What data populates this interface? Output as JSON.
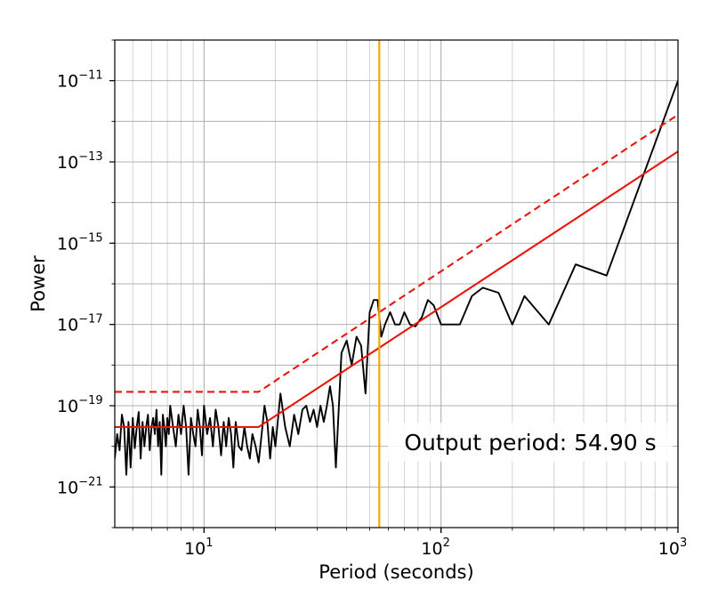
{
  "chart_data": {
    "type": "line",
    "title": "",
    "xlabel": "Period (seconds)",
    "ylabel": "Power",
    "x_scale": "log",
    "y_scale": "log",
    "xlim": [
      4.2,
      1000
    ],
    "ylim": [
      1e-22,
      1e-10
    ],
    "x_ticks": [
      {
        "value": 10,
        "base": "10",
        "exp": "1"
      },
      {
        "value": 100,
        "base": "10",
        "exp": "2"
      },
      {
        "value": 1000,
        "base": "10",
        "exp": "3"
      }
    ],
    "y_ticks": [
      {
        "value": 1e-11,
        "base": "10",
        "exp": "−11"
      },
      {
        "value": 1e-13,
        "base": "10",
        "exp": "−13"
      },
      {
        "value": 1e-15,
        "base": "10",
        "exp": "−15"
      },
      {
        "value": 1e-17,
        "base": "10",
        "exp": "−17"
      },
      {
        "value": 1e-19,
        "base": "10",
        "exp": "−19"
      },
      {
        "value": 1e-21,
        "base": "10",
        "exp": "−21"
      }
    ],
    "grid": true,
    "series": [
      {
        "style": "solid",
        "color": "#000000",
        "x": [
          4.2,
          4.3,
          4.4,
          4.5,
          4.6,
          4.7,
          4.8,
          4.9,
          5.0,
          5.1,
          5.2,
          5.3,
          5.4,
          5.5,
          5.6,
          5.7,
          5.8,
          5.9,
          6.0,
          6.1,
          6.2,
          6.3,
          6.4,
          6.5,
          6.6,
          6.7,
          6.8,
          6.9,
          7.0,
          7.1,
          7.2,
          7.4,
          7.6,
          7.8,
          8.0,
          8.2,
          8.4,
          8.6,
          8.8,
          9.0,
          9.2,
          9.4,
          9.6,
          9.8,
          10.0,
          10.3,
          10.6,
          10.9,
          11.2,
          11.5,
          11.8,
          12.1,
          12.4,
          12.7,
          13.0,
          13.3,
          13.6,
          14.0,
          14.4,
          14.8,
          15.2,
          15.6,
          16.0,
          16.5,
          17.0,
          17.5,
          18.0,
          18.5,
          19.0,
          19.5,
          20.0,
          21.0,
          22.0,
          23.0,
          24.0,
          25.0,
          26.0,
          27.0,
          28.0,
          29.0,
          30.0,
          31.0,
          32.0,
          33.0,
          34.0,
          35.0,
          36.0,
          38.0,
          40.0,
          42.0,
          44.0,
          46.0,
          48.0,
          50.0,
          52.0,
          54.0,
          56.0,
          58.0,
          61.0,
          64.0,
          67.0,
          70.0,
          74.0,
          78.0,
          83.0,
          88.0,
          93.0,
          100.0,
          110.0,
          120.0,
          135.0,
          150.0,
          175.0,
          200.0,
          225.0,
          285.0,
          370.0,
          500.0,
          1000.0
        ],
        "y": [
          5e-21,
          2e-20,
          8e-21,
          6e-20,
          3e-20,
          2e-21,
          4e-20,
          3e-21,
          5e-20,
          9e-21,
          3e-20,
          7e-20,
          5e-21,
          4e-20,
          1e-20,
          3e-20,
          6e-20,
          8e-21,
          3e-20,
          5e-20,
          2e-20,
          8e-20,
          1e-20,
          4e-20,
          2e-21,
          6e-20,
          3e-20,
          1e-20,
          5e-20,
          2e-20,
          1e-19,
          3e-20,
          1e-20,
          6e-20,
          2e-20,
          1e-19,
          3e-20,
          2e-21,
          5e-20,
          2e-20,
          1e-20,
          8e-20,
          3e-20,
          6e-21,
          1e-19,
          2e-20,
          5e-20,
          1e-20,
          8e-20,
          3e-20,
          6e-21,
          4e-20,
          1e-20,
          5e-20,
          2e-20,
          3e-21,
          4e-20,
          1e-20,
          8e-21,
          3e-20,
          1e-20,
          5e-21,
          2e-20,
          1e-20,
          4e-21,
          2e-20,
          1e-19,
          4e-20,
          5e-21,
          3e-20,
          1e-20,
          2e-19,
          3e-20,
          1e-20,
          6e-20,
          2e-20,
          8e-20,
          1e-19,
          4e-20,
          8e-20,
          3e-20,
          1e-19,
          4e-20,
          1e-19,
          3e-19,
          1e-19,
          3e-21,
          2e-18,
          4e-18,
          1e-18,
          5e-18,
          3e-18,
          2e-19,
          2e-17,
          4e-17,
          4e-17,
          5e-18,
          1e-17,
          2e-17,
          1e-17,
          1e-17,
          2e-17,
          1e-17,
          9e-18,
          1.5e-17,
          4e-17,
          3e-17,
          1e-17,
          1e-17,
          1e-17,
          5e-17,
          8e-17,
          6e-17,
          1e-17,
          5e-17,
          1e-17,
          3e-16,
          1.6e-16,
          1e-11
        ]
      },
      {
        "style": "solid",
        "color": "#e8160c",
        "x": [
          4.2,
          17.0,
          1000.0
        ],
        "y": [
          3e-20,
          3e-20,
          1.8e-13
        ]
      },
      {
        "style": "dashed",
        "color": "#e8160c",
        "x": [
          4.2,
          17.0,
          1000.0
        ],
        "y": [
          2.2e-19,
          2.2e-19,
          1.45e-12
        ]
      }
    ],
    "vline": {
      "x": 54.9,
      "color": "#ffa500"
    },
    "annotation": {
      "text": "Output period: 54.90 s",
      "position": "lower-right"
    }
  }
}
